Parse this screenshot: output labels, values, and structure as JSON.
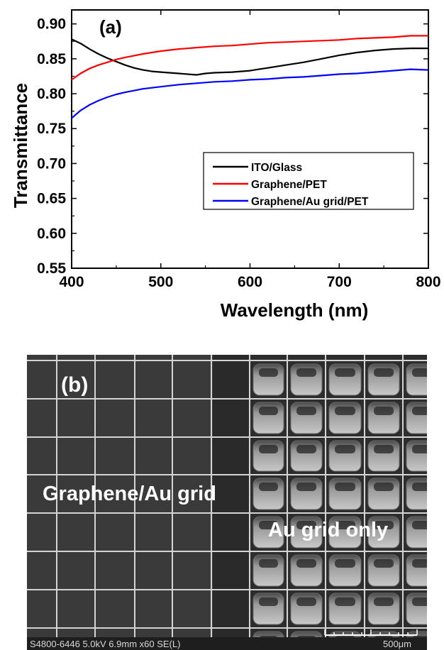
{
  "chart_data": {
    "type": "line",
    "panel_label": "(a)",
    "xlabel": "Wavelength (nm)",
    "ylabel": "Transmittance",
    "xlim": [
      400,
      800
    ],
    "ylim": [
      0.55,
      0.92
    ],
    "x_ticks": [
      400,
      500,
      600,
      700,
      800
    ],
    "y_ticks": [
      "0.55",
      "0.60",
      "0.65",
      "0.70",
      "0.75",
      "0.80",
      "0.85",
      "0.90"
    ],
    "grid": false,
    "legend_position": "lower-right",
    "series": [
      {
        "name": "ITO/Glass",
        "color": "#000000",
        "x": [
          400,
          410,
          420,
          430,
          440,
          450,
          460,
          470,
          480,
          490,
          500,
          520,
          540,
          550,
          560,
          580,
          600,
          610,
          620,
          640,
          660,
          680,
          700,
          720,
          740,
          760,
          780,
          800
        ],
        "y": [
          0.878,
          0.872,
          0.864,
          0.857,
          0.851,
          0.846,
          0.841,
          0.837,
          0.834,
          0.832,
          0.831,
          0.829,
          0.827,
          0.829,
          0.83,
          0.831,
          0.833,
          0.835,
          0.837,
          0.841,
          0.845,
          0.85,
          0.855,
          0.859,
          0.862,
          0.864,
          0.865,
          0.865
        ]
      },
      {
        "name": "Graphene/PET",
        "color": "#ff0000",
        "x": [
          400,
          410,
          420,
          430,
          440,
          450,
          460,
          480,
          500,
          520,
          540,
          560,
          580,
          600,
          620,
          640,
          660,
          680,
          700,
          720,
          740,
          760,
          780,
          800
        ],
        "y": [
          0.82,
          0.829,
          0.836,
          0.841,
          0.845,
          0.849,
          0.852,
          0.857,
          0.861,
          0.864,
          0.866,
          0.868,
          0.869,
          0.871,
          0.873,
          0.874,
          0.875,
          0.876,
          0.877,
          0.879,
          0.88,
          0.881,
          0.883,
          0.883
        ]
      },
      {
        "name": "Graphene/Au grid/PET",
        "color": "#0000ff",
        "x": [
          400,
          410,
          420,
          430,
          440,
          450,
          460,
          480,
          500,
          520,
          540,
          560,
          580,
          600,
          620,
          640,
          660,
          680,
          700,
          720,
          740,
          760,
          780,
          800
        ],
        "y": [
          0.765,
          0.776,
          0.784,
          0.79,
          0.795,
          0.799,
          0.802,
          0.807,
          0.81,
          0.813,
          0.815,
          0.817,
          0.818,
          0.82,
          0.821,
          0.823,
          0.824,
          0.826,
          0.828,
          0.829,
          0.831,
          0.833,
          0.835,
          0.834
        ]
      }
    ]
  },
  "sem_image": {
    "panel_label": "(b)",
    "region_left_label": "Graphene/Au grid",
    "region_right_label": "Au grid only",
    "info_bar": "S4800-6446 5.0kV 6.9mm x60 SE(L)",
    "scale_bar_label": "500μm"
  }
}
